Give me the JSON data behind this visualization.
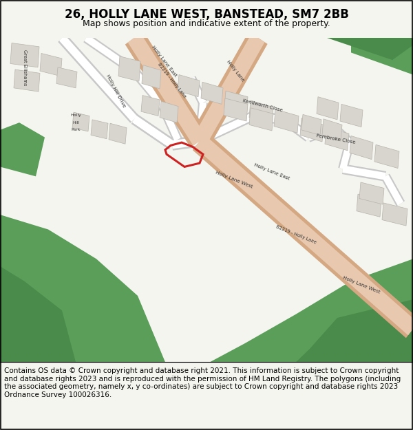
{
  "title": "26, HOLLY LANE WEST, BANSTEAD, SM7 2BB",
  "subtitle": "Map shows position and indicative extent of the property.",
  "footer": "Contains OS data © Crown copyright and database right 2021. This information is subject to Crown copyright and database rights 2023 and is reproduced with the permission of HM Land Registry. The polygons (including the associated geometry, namely x, y co-ordinates) are subject to Crown copyright and database rights 2023 Ordnance Survey 100026316.",
  "bg_color": "#f5f5f0",
  "map_bg": "#f0ede8",
  "road_main_color": "#e8c9b0",
  "road_main_outline": "#d4a882",
  "road_minor_color": "#ffffff",
  "road_minor_outline": "#cccccc",
  "building_color": "#d8d5ce",
  "building_outline": "#b8b4ac",
  "green_color": "#5a9e5a",
  "green_dark": "#4a8a4a",
  "property_color": "#cc2222",
  "footer_bg": "#ffffff",
  "title_fontsize": 12,
  "subtitle_fontsize": 9,
  "footer_fontsize": 7.5
}
